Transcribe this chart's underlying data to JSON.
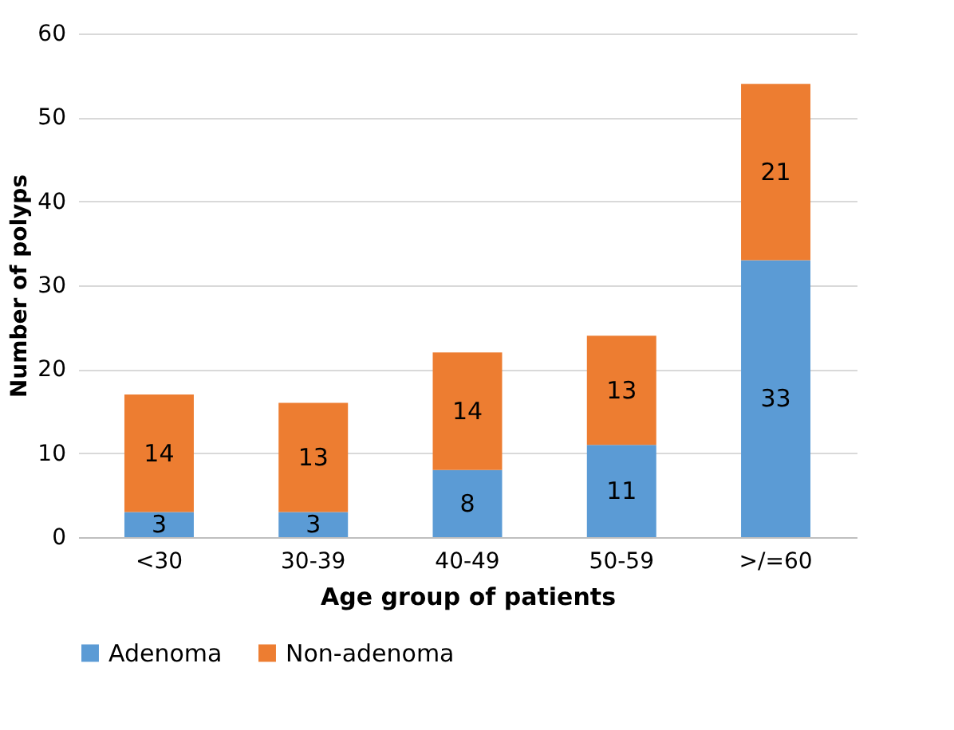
{
  "chart_data": {
    "type": "bar",
    "stacked": true,
    "categories": [
      "<30",
      "30-39",
      "40-49",
      "50-59",
      ">/=60"
    ],
    "series": [
      {
        "name": "Adenoma",
        "color": "#5b9bd5",
        "values": [
          3,
          3,
          8,
          11,
          33
        ]
      },
      {
        "name": "Non-adenoma",
        "color": "#ed7d31",
        "values": [
          14,
          13,
          14,
          13,
          21
        ]
      }
    ],
    "xlabel": "Age group of patients",
    "ylabel": "Number of polyps",
    "ylim": [
      0,
      60
    ],
    "yticks": [
      0,
      10,
      20,
      30,
      40,
      50,
      60
    ],
    "grid": "y",
    "legend": "bottom",
    "data_labels": true
  }
}
